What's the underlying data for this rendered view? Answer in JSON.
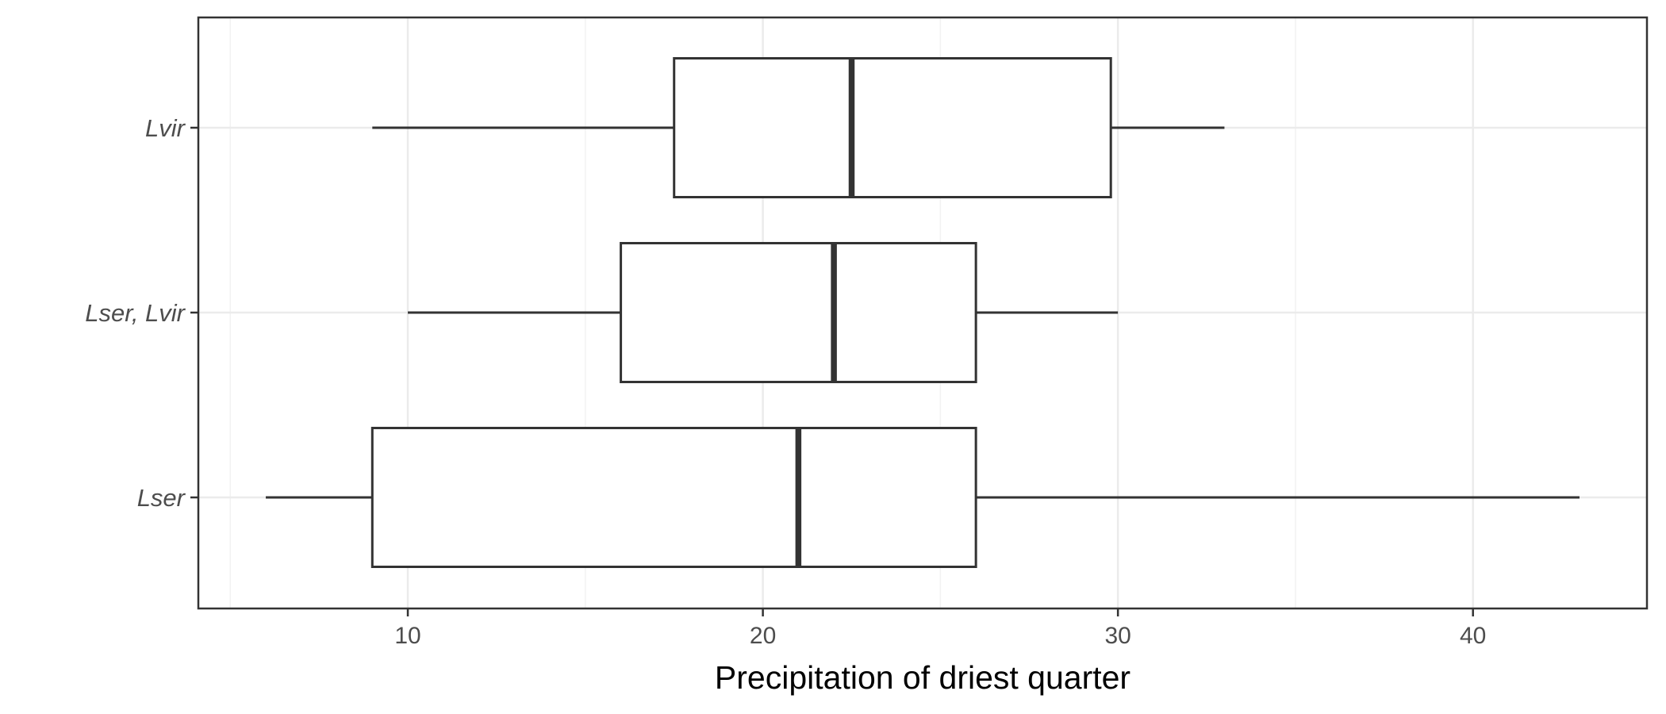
{
  "chart_data": {
    "type": "boxplot",
    "orientation": "horizontal",
    "title": "",
    "xlabel": "Precipitation of driest quarter",
    "ylabel": "",
    "xlim": [
      4.1,
      44.9
    ],
    "xticks": [
      10,
      20,
      30,
      40
    ],
    "xtick_labels": [
      "10",
      "20",
      "30",
      "40"
    ],
    "grid": true,
    "legend": "none",
    "categories": [
      "Lser",
      "Lser, Lvir",
      "Lvir"
    ],
    "boxes": [
      {
        "category": "Lser",
        "whisker_low": 6,
        "q1": 9,
        "median": 21,
        "q3": 26,
        "whisker_high": 43
      },
      {
        "category": "Lser, Lvir",
        "whisker_low": 10,
        "q1": 16,
        "median": 22,
        "q3": 26,
        "whisker_high": 30
      },
      {
        "category": "Lvir",
        "whisker_low": 9,
        "q1": 17.5,
        "median": 22.5,
        "q3": 29.8,
        "whisker_high": 33
      }
    ],
    "colors": {
      "box_fill": "#ffffff",
      "box_stroke": "#333333",
      "panel_border": "#333333",
      "grid_major": "#ebebeb",
      "grid_minor": "#f2f2f2",
      "tick_text": "#4d4d4d",
      "title_text": "#000000"
    }
  }
}
